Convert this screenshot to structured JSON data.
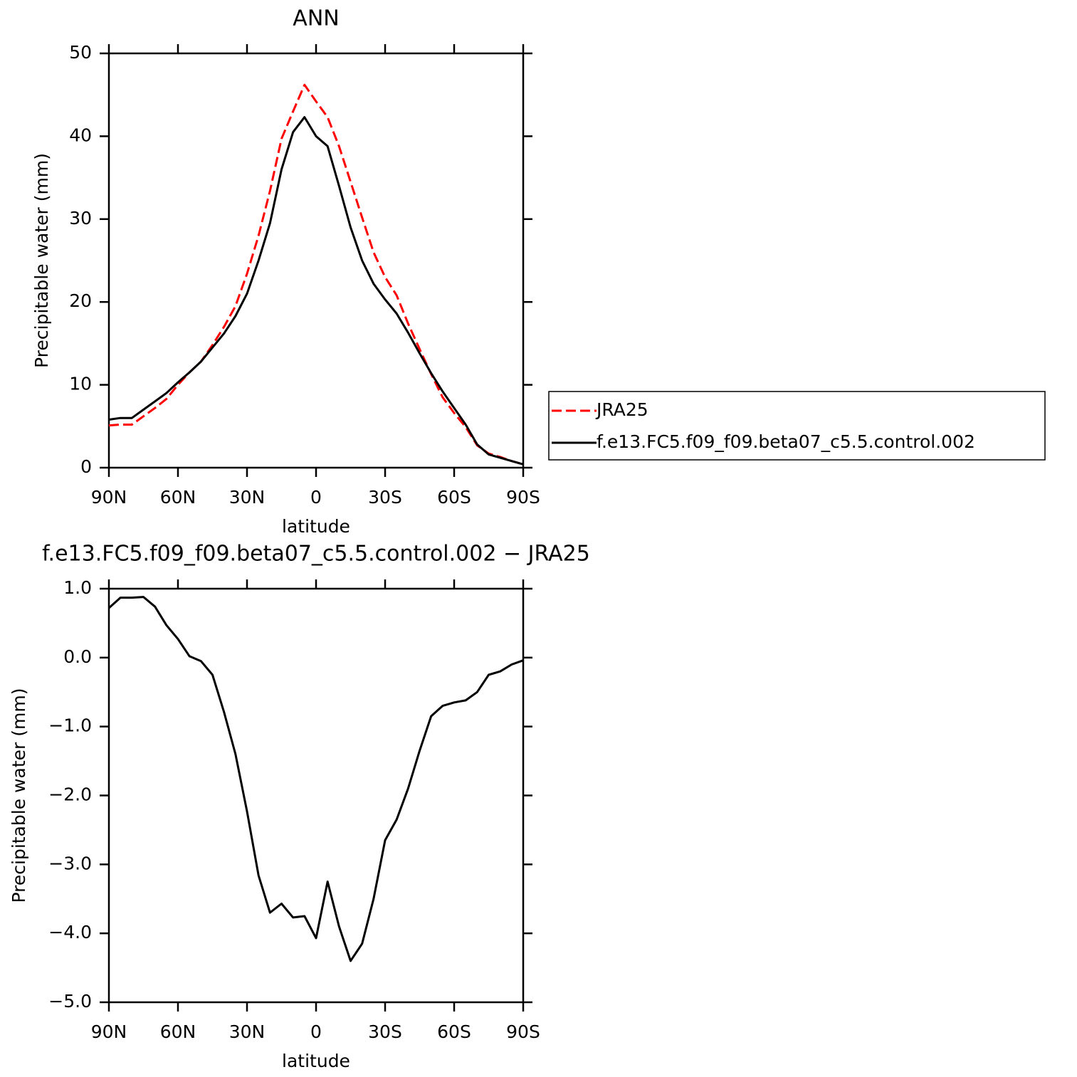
{
  "chart_data": [
    {
      "type": "line",
      "title": "ANN",
      "xlabel": "latitude",
      "ylabel": "Precipitable water (mm)",
      "x": [
        90,
        85,
        80,
        75,
        70,
        65,
        60,
        55,
        50,
        45,
        40,
        35,
        30,
        25,
        20,
        15,
        10,
        5,
        0,
        -5,
        -10,
        -15,
        -20,
        -25,
        -30,
        -35,
        -40,
        -45,
        -50,
        -55,
        -60,
        -65,
        -70,
        -75,
        -80,
        -85,
        -90
      ],
      "series": [
        {
          "name": "JRA25",
          "color": "#ff0000",
          "dash": true,
          "values": [
            5.1,
            5.2,
            5.2,
            6.2,
            7.2,
            8.3,
            10.0,
            11.5,
            12.8,
            14.8,
            17.0,
            19.5,
            23.4,
            28.0,
            33.4,
            39.7,
            43.0,
            46.2,
            44.2,
            42.3,
            38.8,
            34.5,
            30.2,
            26.0,
            23.0,
            20.8,
            17.4,
            14.3,
            11.3,
            8.5,
            6.6,
            4.9,
            2.7,
            1.7,
            1.3,
            0.8,
            0.4
          ]
        },
        {
          "name": "f.e13.FC5.f09_f09.beta07_c5.5.control.002",
          "color": "#000000",
          "dash": false,
          "values": [
            5.8,
            6.0,
            6.0,
            7.0,
            8.0,
            9.0,
            10.3,
            11.5,
            12.8,
            14.5,
            16.2,
            18.3,
            21.0,
            25.0,
            29.5,
            36.0,
            40.5,
            42.3,
            40.0,
            38.8,
            34.0,
            29.0,
            25.0,
            22.2,
            20.3,
            18.6,
            16.3,
            13.8,
            11.4,
            9.2,
            7.2,
            5.2,
            2.8,
            1.6,
            1.2,
            0.8,
            0.4
          ]
        }
      ],
      "xlim": [
        90,
        -90
      ],
      "xticks": [
        {
          "value": 90,
          "label": "90N"
        },
        {
          "value": 60,
          "label": "60N"
        },
        {
          "value": 30,
          "label": "30N"
        },
        0,
        {
          "value": -30,
          "label": "30S"
        },
        {
          "value": -60,
          "label": "60S"
        },
        {
          "value": -90,
          "label": "90S"
        }
      ],
      "ylim": [
        0,
        50
      ],
      "yticks": [
        0,
        10,
        20,
        30,
        40,
        50
      ],
      "legend": "right"
    },
    {
      "type": "line",
      "title": "f.e13.FC5.f09_f09.beta07_c5.5.control.002 − JRA25",
      "xlabel": "latitude",
      "ylabel": "Precipitable water (mm)",
      "x": [
        90,
        85,
        80,
        75,
        70,
        65,
        60,
        55,
        50,
        45,
        40,
        35,
        30,
        25,
        20,
        15,
        10,
        5,
        0,
        -5,
        -10,
        -15,
        -20,
        -25,
        -30,
        -35,
        -40,
        -45,
        -50,
        -55,
        -60,
        -65,
        -70,
        -75,
        -80,
        -85,
        -90
      ],
      "series": [
        {
          "color": "#000000",
          "dash": false,
          "values": [
            0.72,
            0.87,
            0.87,
            0.88,
            0.74,
            0.47,
            0.27,
            0.02,
            -0.05,
            -0.25,
            -0.79,
            -1.4,
            -2.23,
            -3.16,
            -3.7,
            -3.57,
            -3.77,
            -3.75,
            -4.07,
            -3.25,
            -3.9,
            -4.4,
            -4.15,
            -3.5,
            -2.65,
            -2.35,
            -1.9,
            -1.35,
            -0.85,
            -0.7,
            -0.65,
            -0.62,
            -0.5,
            -0.25,
            -0.2,
            -0.1,
            -0.04
          ]
        }
      ],
      "xlim": [
        90,
        -90
      ],
      "xticks": [
        {
          "value": 90,
          "label": "90N"
        },
        {
          "value": 60,
          "label": "60N"
        },
        {
          "value": 30,
          "label": "30N"
        },
        0,
        {
          "value": -30,
          "label": "30S"
        },
        {
          "value": -60,
          "label": "60S"
        },
        {
          "value": -90,
          "label": "90S"
        }
      ],
      "ylim": [
        -5,
        1
      ],
      "yticks": [
        {
          "value": -5,
          "label": "−5.0"
        },
        {
          "value": -4,
          "label": "−4.0"
        },
        {
          "value": -3,
          "label": "−3.0"
        },
        {
          "value": -2,
          "label": "−2.0"
        },
        {
          "value": -1,
          "label": "−1.0"
        },
        {
          "value": 0,
          "label": "0.0"
        },
        {
          "value": 1,
          "label": "1.0"
        }
      ]
    }
  ]
}
